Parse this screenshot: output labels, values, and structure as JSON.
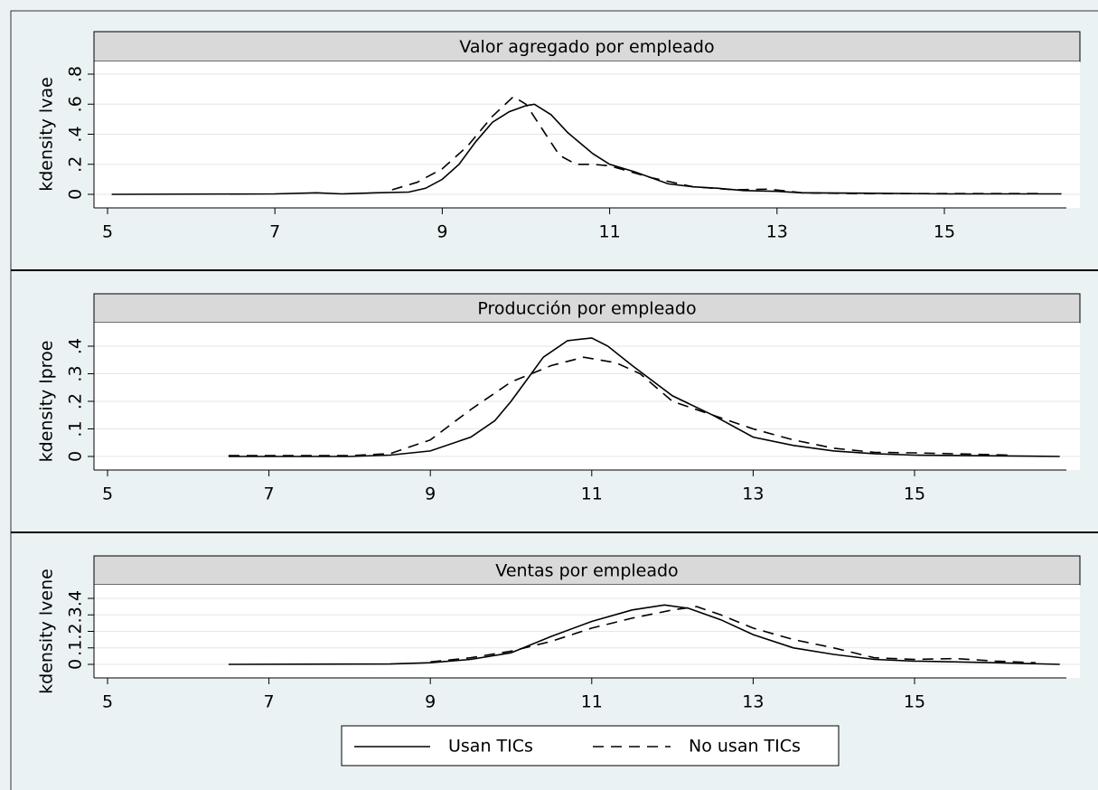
{
  "chart_data": [
    {
      "type": "line",
      "title": "Valor agregado por empleado",
      "ylabel": "kdensity lvae",
      "xlim": [
        5,
        15
      ],
      "xticks": [
        5,
        7,
        9,
        11,
        13,
        15
      ],
      "ylim": [
        0,
        0.8
      ],
      "yticks": [
        0,
        {
          "value": 0.2,
          "label": ".2"
        },
        {
          "value": 0.4,
          "label": ".4"
        },
        {
          "value": 0.6,
          "label": ".6"
        },
        {
          "value": 0.8,
          "label": ".8"
        }
      ],
      "grid": true,
      "series": [
        {
          "name": "Usan TICs",
          "color": "#000000",
          "style": "solid",
          "x": [
            5.05,
            7,
            7.5,
            7.8,
            8.2,
            8.6,
            8.8,
            9,
            9.2,
            9.4,
            9.6,
            9.8,
            10,
            10.1,
            10.3,
            10.5,
            10.8,
            11,
            11.3,
            11.7,
            12,
            12.3,
            12.6,
            13,
            13.3,
            14,
            15,
            16.4
          ],
          "values": [
            0,
            0.003,
            0.01,
            0.003,
            0.01,
            0.015,
            0.04,
            0.1,
            0.2,
            0.35,
            0.48,
            0.55,
            0.59,
            0.6,
            0.53,
            0.41,
            0.27,
            0.2,
            0.15,
            0.07,
            0.05,
            0.04,
            0.025,
            0.02,
            0.01,
            0.008,
            0.003,
            0.003
          ]
        },
        {
          "name": "No usan TICs",
          "color": "#000000",
          "style": "dashed",
          "x": [
            8.4,
            8.7,
            9,
            9.3,
            9.6,
            9.85,
            10,
            10.2,
            10.4,
            10.6,
            10.8,
            11,
            11.5,
            12,
            12.5,
            12.9,
            13.3,
            14,
            15,
            16.2
          ],
          "values": [
            0.03,
            0.08,
            0.17,
            0.32,
            0.52,
            0.65,
            0.6,
            0.43,
            0.26,
            0.2,
            0.2,
            0.19,
            0.11,
            0.05,
            0.03,
            0.035,
            0.01,
            0.005,
            0.005,
            0.005
          ]
        }
      ]
    },
    {
      "type": "line",
      "title": "Producción por empleado",
      "ylabel": "kdensity lproe",
      "xlim": [
        5,
        15
      ],
      "xticks": [
        5,
        7,
        9,
        11,
        13,
        15
      ],
      "ylim": [
        0,
        0.4
      ],
      "yticks": [
        0,
        {
          "value": 0.1,
          "label": ".1"
        },
        {
          "value": 0.2,
          "label": ".2"
        },
        {
          "value": 0.3,
          "label": ".3"
        },
        {
          "value": 0.4,
          "label": ".4"
        }
      ],
      "grid": true,
      "series": [
        {
          "name": "Usan TICs",
          "color": "#000000",
          "style": "solid",
          "x": [
            6.5,
            8,
            8.5,
            9,
            9.5,
            9.8,
            10,
            10.2,
            10.4,
            10.7,
            11,
            11.2,
            11.5,
            12,
            12.5,
            13,
            13.5,
            14,
            14.5,
            15,
            16.8
          ],
          "values": [
            0,
            0,
            0.005,
            0.02,
            0.07,
            0.13,
            0.2,
            0.28,
            0.36,
            0.42,
            0.43,
            0.4,
            0.33,
            0.22,
            0.15,
            0.07,
            0.04,
            0.02,
            0.01,
            0.005,
            0
          ]
        },
        {
          "name": "No usan TICs",
          "color": "#000000",
          "style": "dashed",
          "x": [
            6.5,
            8,
            8.5,
            9,
            9.5,
            10,
            10.5,
            10.9,
            11.3,
            11.6,
            12,
            12.5,
            13,
            13.5,
            14,
            14.5,
            15,
            16.2
          ],
          "values": [
            0.003,
            0.003,
            0.01,
            0.06,
            0.17,
            0.27,
            0.33,
            0.36,
            0.34,
            0.3,
            0.2,
            0.15,
            0.1,
            0.06,
            0.03,
            0.015,
            0.013,
            0.005
          ]
        }
      ]
    },
    {
      "type": "line",
      "title": "Ventas por empleado",
      "ylabel": "kdensity lvene",
      "xlim": [
        5,
        15
      ],
      "xticks": [
        5,
        7,
        9,
        11,
        13,
        15
      ],
      "ylim": [
        0,
        0.4
      ],
      "yticks": [
        0,
        {
          "value": 0.1,
          "label": ".1"
        },
        {
          "value": 0.2,
          "label": ".2"
        },
        {
          "value": 0.3,
          "label": ".3"
        },
        {
          "value": 0.4,
          "label": ".4"
        }
      ],
      "grid": true,
      "series": [
        {
          "name": "Usan TICs",
          "color": "#000000",
          "style": "solid",
          "x": [
            6.5,
            8.5,
            9,
            9.5,
            10,
            10.5,
            11,
            11.5,
            11.9,
            12.2,
            12.6,
            13,
            13.5,
            14,
            14.5,
            15,
            16,
            16.8
          ],
          "values": [
            0,
            0.002,
            0.01,
            0.03,
            0.07,
            0.17,
            0.26,
            0.33,
            0.36,
            0.34,
            0.27,
            0.18,
            0.1,
            0.06,
            0.03,
            0.02,
            0.01,
            0
          ]
        },
        {
          "name": "No usan TICs",
          "color": "#000000",
          "style": "dashed",
          "x": [
            9,
            9.5,
            10,
            10.5,
            11,
            11.5,
            12,
            12.3,
            12.6,
            13,
            13.5,
            14,
            14.5,
            15,
            15.5,
            16,
            16.5
          ],
          "values": [
            0.015,
            0.04,
            0.08,
            0.14,
            0.22,
            0.28,
            0.33,
            0.35,
            0.3,
            0.22,
            0.15,
            0.1,
            0.04,
            0.03,
            0.035,
            0.02,
            0.01
          ]
        }
      ]
    }
  ]
}
